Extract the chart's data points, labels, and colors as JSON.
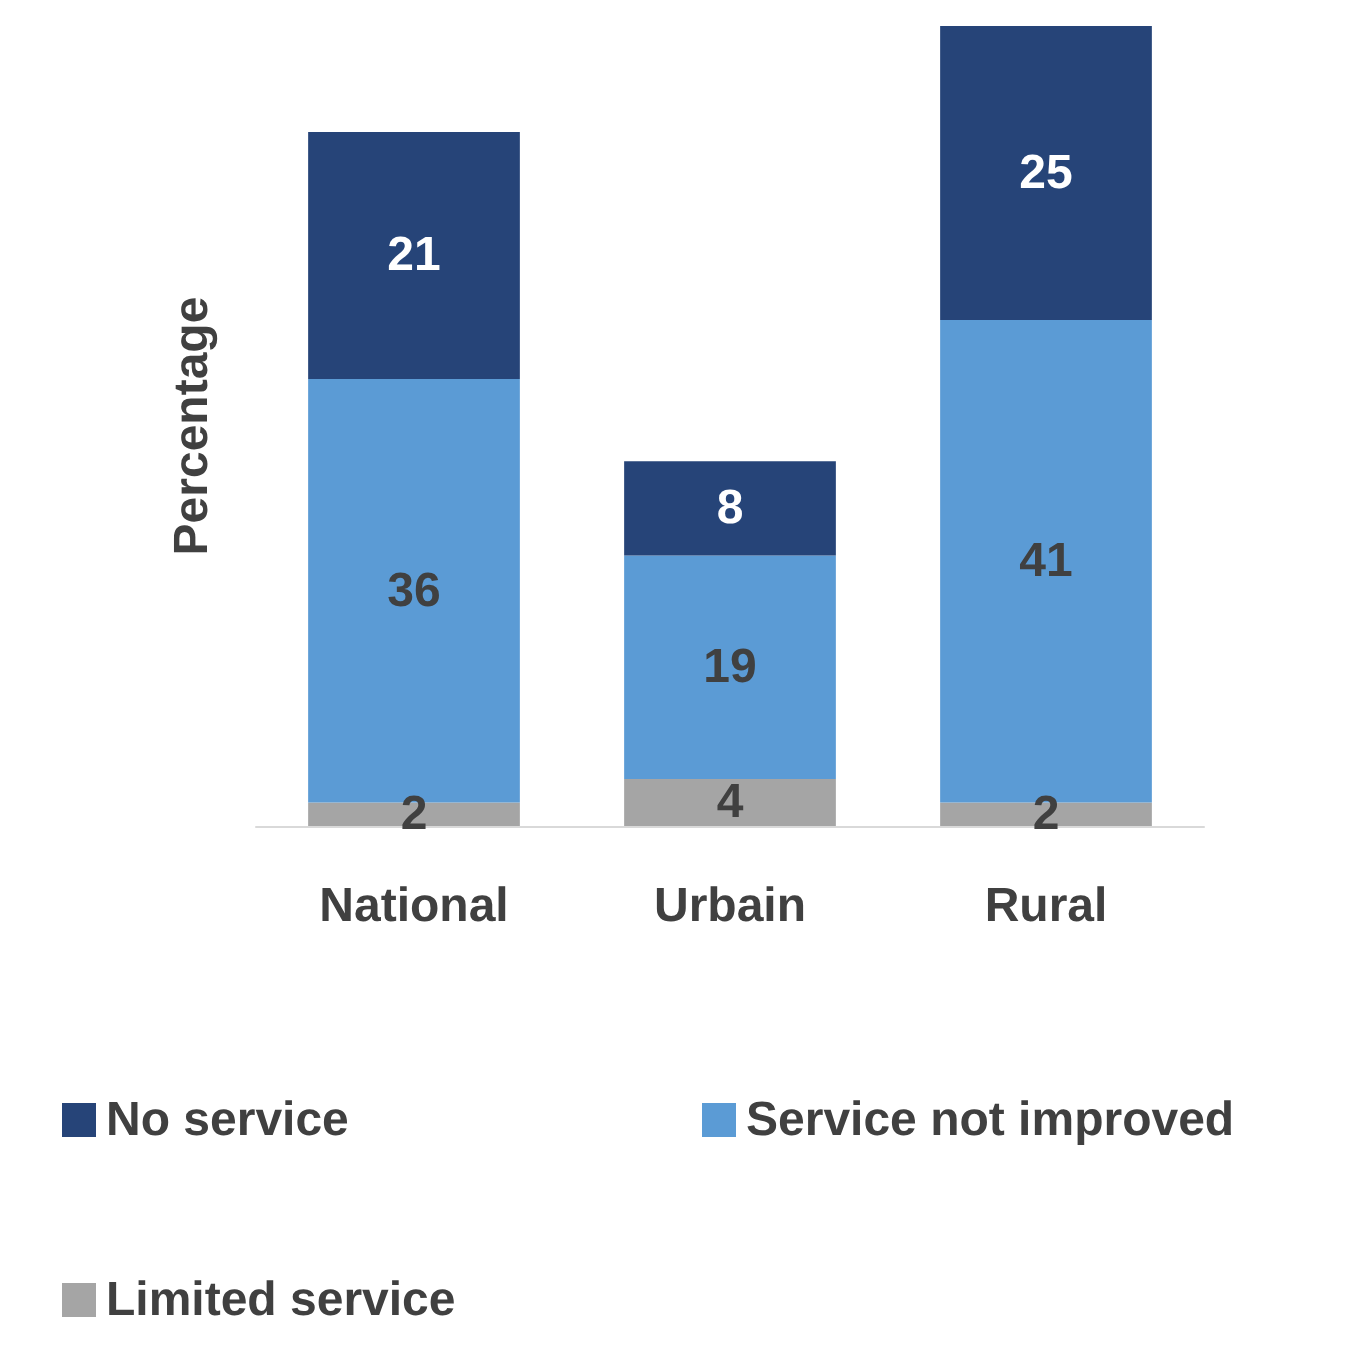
{
  "chart_data": {
    "type": "bar",
    "stacked": true,
    "ylabel": "Percentage",
    "categories": [
      "National",
      "Urbain",
      "Rural"
    ],
    "series": [
      {
        "name": "Limited service",
        "color": "#a5a5a5",
        "values": [
          2,
          4,
          2
        ]
      },
      {
        "name": "Service not improved",
        "color": "#5b9bd5",
        "values": [
          36,
          19,
          41
        ]
      },
      {
        "name": "No service",
        "color": "#264478",
        "values": [
          21,
          8,
          25
        ]
      }
    ],
    "data_labels": true,
    "legend": "bottom",
    "grid": false
  }
}
